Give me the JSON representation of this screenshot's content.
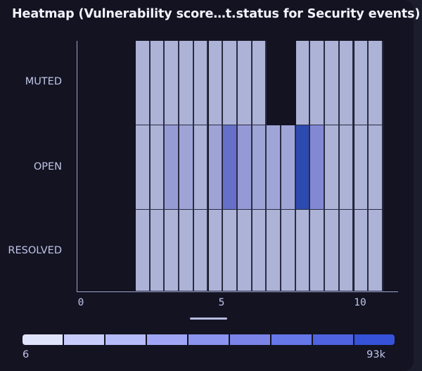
{
  "header": {
    "title": "Heatmap (Vulnerability score…t.status for Security events)"
  },
  "chart_data": {
    "type": "heatmap",
    "title": "Heatmap (Vulnerability score…t.status for Security events)",
    "xlabel": "",
    "ylabel": "",
    "x_ticks": [
      "0",
      "5",
      "10"
    ],
    "xlim": [
      0,
      11.3
    ],
    "bin_width": 0.5,
    "x_bins": [
      2.0,
      2.5,
      3.0,
      3.5,
      4.0,
      4.5,
      5.0,
      5.5,
      6.0,
      6.5,
      7.0,
      7.5,
      8.0,
      8.5,
      9.0,
      9.5,
      10.0
    ],
    "categories": [
      "MUTED",
      "OPEN",
      "RESOLVED"
    ],
    "cells": {
      "MUTED": [
        "#adb3d6",
        "#adb3d6",
        "#adb3d6",
        "#adb3d6",
        "#adb3d6",
        "#adb3d6",
        "#adb3d6",
        "#adb3d6",
        "#adb3d6",
        null,
        null,
        "#adb3d6",
        "#adb3d6",
        "#adb3d6",
        "#adb3d6",
        "#adb3d6",
        "#adb3d6"
      ],
      "OPEN": [
        "#adb3d6",
        "#adb3d6",
        "#959cd5",
        "#9fa4d7",
        "#adb3d6",
        "#9fa4d7",
        "#6670c8",
        "#959ad6",
        "#9fa4d7",
        "#a0a5d8",
        "#a0a5d8",
        "#2d4ab0",
        "#8388d5",
        "#adb3d6",
        "#adb3d6",
        "#adb3d6",
        "#adb3d6"
      ],
      "RESOLVED": [
        "#adb3d6",
        "#adb3d6",
        "#adb3d6",
        "#adb3d6",
        "#adb3d6",
        "#adb3d6",
        "#adb3d6",
        "#adb3d6",
        "#adb3d6",
        "#adb3d6",
        "#adb3d6",
        "#adb3d6",
        "#adb3d6",
        "#adb3d6",
        "#adb3d6",
        "#adb3d6",
        "#adb3d6"
      ]
    },
    "legend": {
      "min_label": "6",
      "max_label": "93k",
      "colors": [
        "#e0e4fa",
        "#c8ccfa",
        "#b5baf8",
        "#a0a6f5",
        "#8b94ee",
        "#7b84e8",
        "#6677ea",
        "#4f63e0",
        "#3552d8"
      ],
      "position": "bottom"
    },
    "grid": false
  }
}
